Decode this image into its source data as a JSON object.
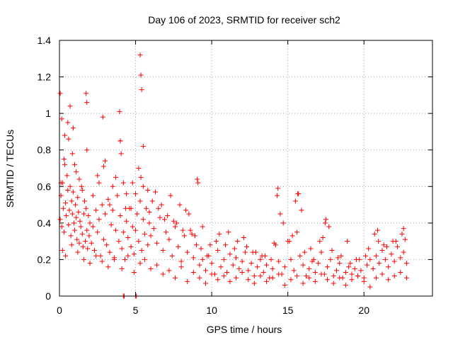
{
  "chart_data": {
    "type": "scatter",
    "title": "Day 106 of 2023, SRMTID for receiver sch2",
    "xlabel": "GPS time / hours",
    "ylabel": "SRMTID / TECUs",
    "xlim": [
      0,
      24.5
    ],
    "ylim": [
      0,
      1.4
    ],
    "xticks": [
      0,
      5,
      10,
      15,
      20
    ],
    "xtick_labels": [
      "0",
      "5",
      "10",
      "15",
      "20"
    ],
    "yticks": [
      0,
      0.2,
      0.4,
      0.6,
      0.8,
      1,
      1.2,
      1.4
    ],
    "ytick_labels": [
      "0",
      "0.2",
      "0.4",
      "0.6",
      "0.8",
      "1",
      "1.2",
      "1.4"
    ],
    "grid": true,
    "marker": "+",
    "series": [
      {
        "name": "SRMTID",
        "color": "#ff0000",
        "x": [
          0.05,
          0.1,
          0.15,
          0.2,
          0.25,
          0.3,
          0.35,
          0.4,
          0.45,
          0.5,
          0.55,
          0.6,
          0.65,
          0.7,
          0.75,
          0.8,
          0.85,
          0.9,
          0.95,
          1.0,
          1.05,
          1.1,
          1.15,
          1.2,
          1.25,
          1.3,
          1.35,
          1.4,
          1.45,
          1.5,
          1.55,
          1.6,
          1.65,
          1.7,
          1.75,
          1.8,
          1.85,
          1.9,
          1.95,
          2.0,
          2.1,
          2.2,
          2.3,
          2.4,
          2.5,
          2.6,
          2.7,
          2.8,
          2.9,
          3.0,
          3.1,
          3.2,
          3.3,
          3.4,
          3.5,
          3.6,
          3.7,
          3.8,
          3.9,
          4.0,
          4.1,
          4.2,
          4.3,
          4.4,
          4.5,
          4.6,
          4.7,
          4.8,
          4.9,
          5.0,
          5.1,
          5.2,
          5.3,
          5.4,
          5.5,
          5.6,
          5.7,
          5.8,
          5.9,
          6.0,
          6.2,
          6.4,
          6.6,
          6.8,
          7.0,
          7.2,
          7.4,
          7.6,
          7.8,
          8.0,
          8.2,
          8.4,
          8.6,
          8.8,
          9.0,
          9.2,
          9.4,
          9.6,
          9.8,
          10.0,
          10.2,
          10.4,
          10.6,
          10.8,
          11.0,
          11.2,
          11.4,
          11.6,
          11.8,
          12.0,
          12.2,
          12.4,
          12.6,
          12.8,
          13.0,
          13.2,
          13.4,
          13.6,
          13.8,
          14.0,
          14.2,
          14.4,
          14.6,
          14.8,
          15.0,
          15.2,
          15.4,
          15.6,
          15.8,
          16.0,
          16.2,
          16.4,
          16.6,
          16.8,
          17.0,
          17.2,
          17.4,
          17.6,
          17.8,
          18.0,
          18.2,
          18.4,
          18.6,
          18.8,
          19.0,
          19.2,
          19.4,
          19.6,
          19.8,
          20.0,
          20.2,
          20.4,
          20.6,
          20.8,
          21.0,
          21.2,
          21.4,
          21.6,
          21.8,
          22.0,
          22.2,
          22.4,
          22.6,
          22.8,
          0.1,
          0.3,
          0.6,
          0.9,
          1.1,
          1.5,
          1.8,
          2.2,
          2.6,
          2.9,
          3.3,
          3.7,
          4.0,
          4.2,
          4.4,
          4.7,
          5.0,
          5.2,
          5.35,
          5.5,
          5.8,
          6.1,
          6.5,
          6.9,
          7.3,
          7.7,
          8.1,
          8.5,
          8.9,
          9.1,
          9.3,
          9.7,
          10.3,
          10.9,
          11.5,
          12.1,
          12.7,
          13.3,
          13.9,
          14.3,
          14.5,
          15.1,
          15.5,
          15.7,
          16.1,
          16.7,
          17.3,
          17.5,
          17.9,
          18.5,
          19.1,
          19.7,
          20.3,
          20.9,
          21.3,
          21.9,
          22.5,
          22.7,
          0.2,
          0.4,
          0.8,
          1.2,
          1.6,
          2.0,
          2.4,
          2.8,
          3.2,
          3.6,
          4.1,
          4.5,
          4.9,
          5.3,
          5.6,
          6.0,
          6.4,
          6.8,
          7.2,
          7.6,
          8.0,
          8.4,
          8.8,
          9.2,
          9.6,
          10.0,
          10.4,
          10.8,
          11.2,
          11.6,
          12.0,
          12.4,
          12.8,
          13.2,
          13.6,
          14.0,
          14.4,
          14.8,
          15.2,
          15.6,
          16.0,
          16.4,
          16.8,
          17.2,
          17.6,
          18.0,
          18.4,
          18.8,
          19.2,
          19.6,
          20.0,
          20.4,
          20.8,
          21.2,
          21.6,
          22.0,
          22.4,
          22.8,
          0.05,
          0.15,
          1.75,
          1.8,
          2.85,
          3.95,
          4.0,
          5.3,
          5.35,
          5.4,
          4.2,
          4.25,
          5.0,
          5.05,
          0.35,
          0.55,
          0.7,
          0.85,
          1.0,
          1.3,
          2.5,
          3.0,
          3.5,
          4.05,
          4.35,
          4.8,
          5.5,
          5.9,
          6.3,
          6.7,
          7.1,
          7.5,
          7.9,
          8.3,
          8.7,
          9.05,
          9.4,
          9.9,
          10.5,
          11.1,
          11.7,
          12.3,
          12.9,
          13.5,
          14.1,
          14.35,
          14.7,
          15.3,
          15.65,
          15.9,
          16.5,
          17.1,
          17.45,
          17.7,
          18.3,
          18.9,
          19.5,
          20.1,
          20.7,
          20.95,
          21.5,
          22.1,
          22.6
        ],
        "y": [
          0.42,
          0.55,
          0.38,
          0.62,
          0.48,
          0.35,
          0.72,
          0.51,
          0.44,
          0.66,
          0.58,
          0.39,
          0.47,
          0.6,
          0.33,
          0.52,
          0.45,
          0.57,
          0.4,
          0.36,
          0.5,
          0.43,
          0.31,
          0.54,
          0.46,
          0.29,
          0.41,
          0.38,
          0.6,
          0.34,
          0.27,
          0.45,
          0.52,
          0.3,
          0.48,
          0.36,
          0.26,
          0.44,
          0.33,
          0.4,
          0.29,
          0.38,
          0.25,
          0.47,
          0.35,
          0.42,
          0.22,
          0.5,
          0.31,
          0.45,
          0.28,
          0.53,
          0.24,
          0.39,
          0.47,
          0.21,
          0.36,
          0.55,
          0.3,
          0.44,
          0.26,
          0.35,
          0.2,
          0.41,
          0.32,
          0.48,
          0.27,
          0.38,
          0.23,
          0.36,
          0.45,
          0.3,
          0.52,
          0.25,
          0.42,
          0.34,
          0.48,
          0.28,
          0.4,
          0.33,
          0.37,
          0.29,
          0.43,
          0.25,
          0.35,
          0.31,
          0.22,
          0.38,
          0.27,
          0.19,
          0.33,
          0.24,
          0.36,
          0.21,
          0.28,
          0.17,
          0.2,
          0.14,
          0.22,
          0.18,
          0.12,
          0.25,
          0.16,
          0.2,
          0.13,
          0.23,
          0.17,
          0.21,
          0.15,
          0.19,
          0.24,
          0.14,
          0.18,
          0.11,
          0.16,
          0.2,
          0.13,
          0.17,
          0.1,
          0.15,
          0.28,
          0.19,
          0.12,
          0.16,
          0.3,
          0.2,
          0.14,
          0.35,
          0.22,
          0.17,
          0.11,
          0.15,
          0.19,
          0.13,
          0.18,
          0.24,
          0.12,
          0.16,
          0.2,
          0.11,
          0.14,
          0.18,
          0.1,
          0.13,
          0.16,
          0.12,
          0.15,
          0.11,
          0.14,
          0.1,
          0.17,
          0.2,
          0.15,
          0.22,
          0.18,
          0.25,
          0.2,
          0.16,
          0.23,
          0.19,
          0.27,
          0.21,
          0.24,
          0.18,
          0.62,
          0.75,
          0.86,
          0.92,
          0.68,
          0.58,
          0.8,
          0.55,
          0.62,
          0.71,
          0.5,
          0.65,
          0.85,
          0.62,
          0.56,
          0.48,
          0.56,
          0.7,
          0.65,
          0.82,
          0.58,
          0.52,
          0.48,
          0.42,
          0.55,
          0.4,
          0.36,
          0.45,
          0.33,
          0.62,
          0.26,
          0.22,
          0.3,
          0.28,
          0.26,
          0.32,
          0.24,
          0.22,
          0.2,
          0.55,
          0.45,
          0.3,
          0.52,
          0.56,
          0.24,
          0.2,
          0.32,
          0.42,
          0.25,
          0.22,
          0.18,
          0.2,
          0.26,
          0.36,
          0.28,
          0.3,
          0.34,
          0.31,
          0.25,
          0.22,
          0.28,
          0.24,
          0.2,
          0.18,
          0.22,
          0.19,
          0.16,
          0.2,
          0.15,
          0.22,
          0.13,
          0.18,
          0.2,
          0.15,
          0.17,
          0.12,
          0.14,
          0.1,
          0.16,
          0.08,
          0.13,
          0.1,
          0.07,
          0.12,
          0.09,
          0.11,
          0.08,
          0.1,
          0.13,
          0.09,
          0.07,
          0.11,
          0.08,
          0.1,
          0.12,
          0.06,
          0.09,
          0.11,
          0.07,
          0.1,
          0.08,
          0.12,
          0.09,
          0.07,
          0.1,
          0.06,
          0.09,
          0.11,
          0.08,
          0.05,
          0.1,
          0.12,
          0.09,
          0.11,
          0.13,
          0.1,
          1.11,
          0.97,
          1.11,
          1.06,
          0.98,
          1.01,
          0.85,
          1.32,
          1.21,
          1.13,
          0.0,
          0.0,
          0.0,
          0.0,
          0.88,
          0.95,
          1.04,
          0.78,
          0.72,
          0.64,
          0.66,
          0.74,
          0.6,
          0.78,
          0.48,
          0.62,
          0.6,
          0.46,
          0.57,
          0.5,
          0.44,
          0.41,
          0.5,
          0.47,
          0.34,
          0.64,
          0.38,
          0.28,
          0.34,
          0.35,
          0.3,
          0.27,
          0.24,
          0.22,
          0.29,
          0.59,
          0.4,
          0.33,
          0.56,
          0.47,
          0.26,
          0.3,
          0.4,
          0.38,
          0.21,
          0.3,
          0.2,
          0.22,
          0.34,
          0.3,
          0.27,
          0.3,
          0.37
        ]
      }
    ]
  }
}
